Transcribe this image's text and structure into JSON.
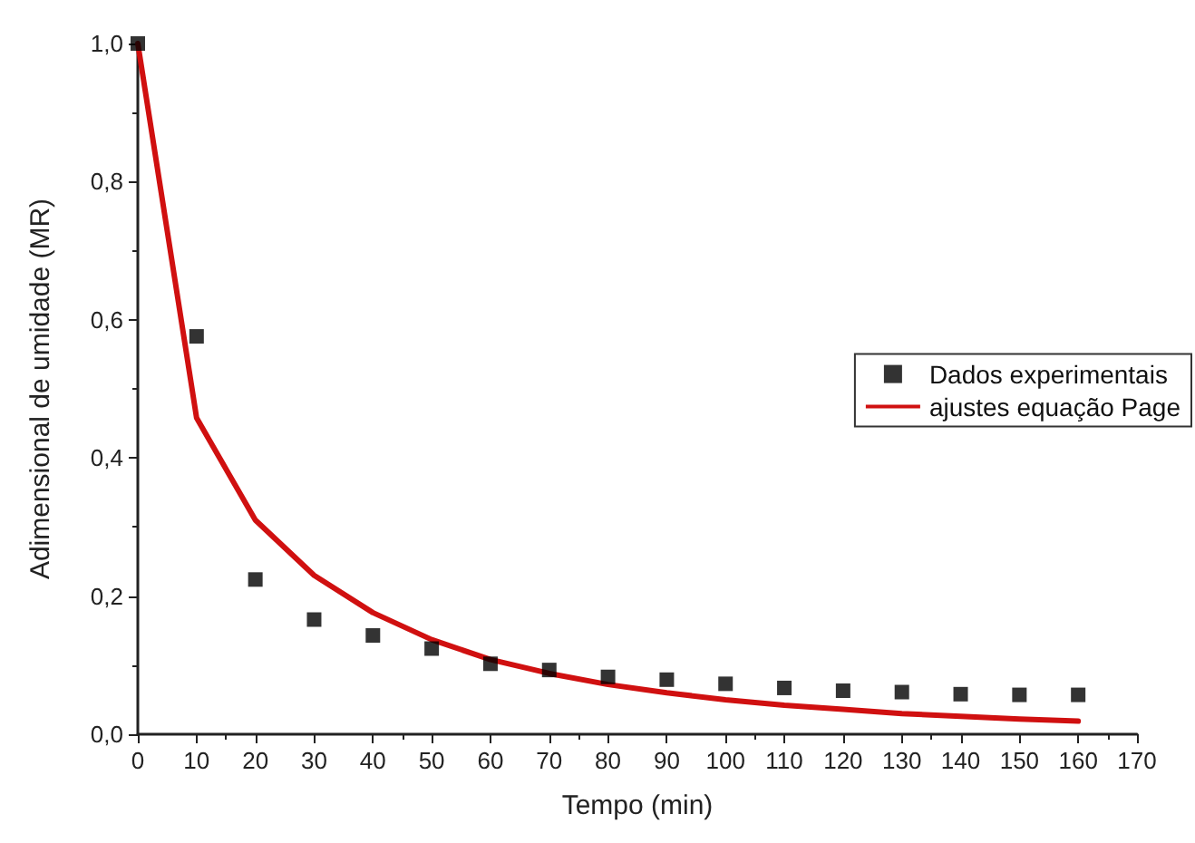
{
  "chart_data": {
    "type": "scatter",
    "xlabel": "Tempo (min)",
    "ylabel": "Adimensional de umidade (MR)",
    "xlim": [
      0,
      170
    ],
    "xticks": [
      0,
      10,
      20,
      30,
      40,
      50,
      60,
      70,
      80,
      90,
      100,
      110,
      120,
      130,
      140,
      150,
      160,
      170
    ],
    "ylim": [
      0,
      1
    ],
    "yticks": [
      {
        "value": 0,
        "label": "0,0"
      },
      {
        "value": 0.2,
        "label": "0,2"
      },
      {
        "value": 0.4,
        "label": "0,4"
      },
      {
        "value": 0.6,
        "label": "0,6"
      },
      {
        "value": 0.8,
        "label": "0,8"
      },
      {
        "value": 1,
        "label": "1,0"
      }
    ],
    "grid": false,
    "legend": "right",
    "series": [
      {
        "name": "Dados experimentais",
        "marker": "square",
        "color": "#000000",
        "x": [
          0,
          10,
          20,
          30,
          40,
          50,
          60,
          70,
          80,
          90,
          100,
          110,
          120,
          130,
          140,
          150,
          160
        ],
        "values": [
          1.0,
          0.576,
          0.224,
          0.166,
          0.143,
          0.124,
          0.102,
          0.093,
          0.083,
          0.079,
          0.073,
          0.067,
          0.063,
          0.061,
          0.058,
          0.057,
          0.057
        ]
      },
      {
        "name": "ajustes equação Page",
        "type": "line",
        "marker": "none",
        "color": "#d01010",
        "line_style": "solid",
        "x": [
          0,
          10,
          20,
          30,
          40,
          50,
          60,
          70,
          80,
          90,
          100,
          110,
          120,
          130,
          140,
          150,
          160
        ],
        "values": [
          1.0,
          0.458,
          0.31,
          0.23,
          0.176,
          0.137,
          0.108,
          0.088,
          0.072,
          0.06,
          0.05,
          0.042,
          0.036,
          0.03,
          0.026,
          0.022,
          0.019
        ]
      }
    ]
  }
}
